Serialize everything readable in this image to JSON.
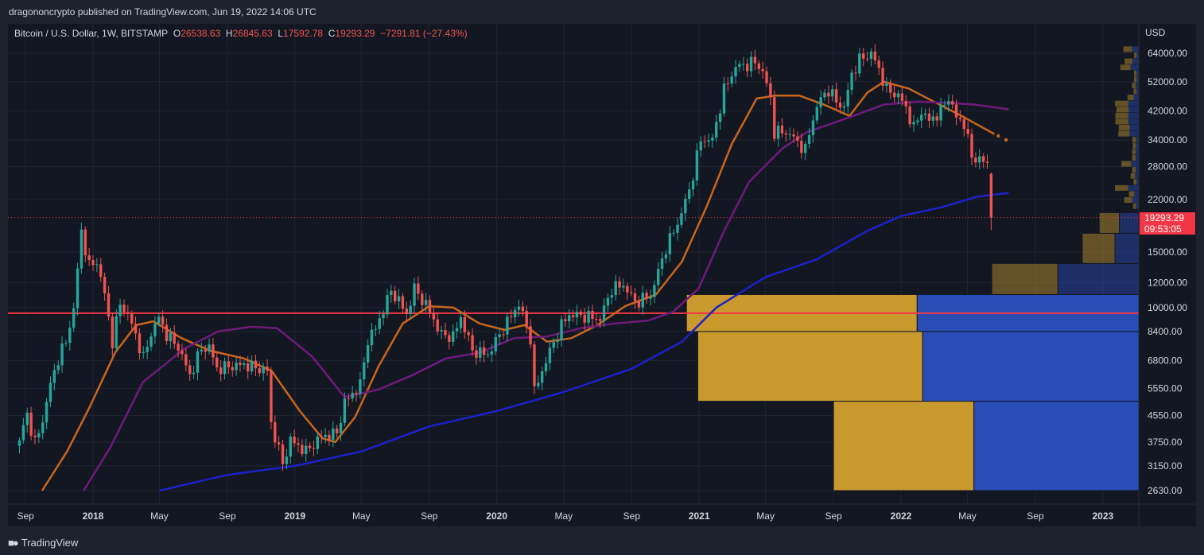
{
  "header": {
    "publisher": "dragononcrypto published on TradingView.com, Jun 19, 2022 14:06 UTC"
  },
  "legend": {
    "symbol": "Bitcoin / U.S. Dollar, 1W, BITSTAMP",
    "o_label": "O",
    "o": "26538.63",
    "h_label": "H",
    "h": "26845.63",
    "l_label": "L",
    "l": "17592.78",
    "c_label": "C",
    "c": "19293.29",
    "change": "−7291.81 (−27.43%)"
  },
  "price_tag": {
    "price": "19293.29",
    "countdown": "09:53:05"
  },
  "footer": {
    "brand": "TradingView",
    "logo_icon": "tradingview-logo-icon"
  },
  "colors": {
    "background": "#131722",
    "up": "#26a69a",
    "down": "#ef5350",
    "ma_orange": "#c8661b",
    "ma_purple": "#6f1a7b",
    "ma_blue": "#1c20c8",
    "hline": "#f23645",
    "vp_up": "#2a4db5",
    "vp_down": "#c89a2e"
  },
  "chart_data": {
    "type": "candlestick",
    "scale": "log",
    "currency": "USD",
    "y_ticks": [
      64000,
      52000,
      42000,
      34000,
      28000,
      22000,
      15000,
      12000,
      10000,
      8400,
      6800,
      5550,
      4550,
      3750,
      3150,
      2630
    ],
    "y_tick_labels": [
      "64000.00",
      "52000.00",
      "42000.00",
      "34000.00",
      "28000.00",
      "22000.00",
      "15000.00",
      "12000.00",
      "10000.00",
      "8400.00",
      "6800.00",
      "5550.00",
      "4550.00",
      "3750.00",
      "3150.00",
      "2630.00"
    ],
    "x_tick_labels": [
      {
        "date": "2017-09-01",
        "label": "Sep",
        "bold": false
      },
      {
        "date": "2018-01-01",
        "label": "2018",
        "bold": true
      },
      {
        "date": "2018-05-01",
        "label": "May",
        "bold": false
      },
      {
        "date": "2018-09-01",
        "label": "Sep",
        "bold": false
      },
      {
        "date": "2019-01-01",
        "label": "2019",
        "bold": true
      },
      {
        "date": "2019-05-01",
        "label": "May",
        "bold": false
      },
      {
        "date": "2019-09-01",
        "label": "Sep",
        "bold": false
      },
      {
        "date": "2020-01-01",
        "label": "2020",
        "bold": true
      },
      {
        "date": "2020-05-01",
        "label": "May",
        "bold": false
      },
      {
        "date": "2020-09-01",
        "label": "Sep",
        "bold": false
      },
      {
        "date": "2021-01-01",
        "label": "2021",
        "bold": true
      },
      {
        "date": "2021-05-01",
        "label": "May",
        "bold": false
      },
      {
        "date": "2021-09-01",
        "label": "Sep",
        "bold": false
      },
      {
        "date": "2022-01-01",
        "label": "2022",
        "bold": true
      },
      {
        "date": "2022-05-01",
        "label": "May",
        "bold": false
      },
      {
        "date": "2022-09-01",
        "label": "Sep",
        "bold": false
      },
      {
        "date": "2023-01-01",
        "label": "2023",
        "bold": true
      }
    ],
    "horizontal_line": 9600,
    "last_close": 19293.29,
    "price_anchors": [
      [
        "2017-08-21",
        3800
      ],
      [
        "2017-09-04",
        4600
      ],
      [
        "2017-09-18",
        3700
      ],
      [
        "2017-10-02",
        4400
      ],
      [
        "2017-10-16",
        5700
      ],
      [
        "2017-10-30",
        6900
      ],
      [
        "2017-11-13",
        7800
      ],
      [
        "2017-11-27",
        9900
      ],
      [
        "2017-12-11",
        17500
      ],
      [
        "2017-12-25",
        13500
      ],
      [
        "2018-01-08",
        14000
      ],
      [
        "2018-01-22",
        11000
      ],
      [
        "2018-02-05",
        7800
      ],
      [
        "2018-02-19",
        10300
      ],
      [
        "2018-03-05",
        9500
      ],
      [
        "2018-03-19",
        8200
      ],
      [
        "2018-04-02",
        6900
      ],
      [
        "2018-04-16",
        8300
      ],
      [
        "2018-04-30",
        9300
      ],
      [
        "2018-05-14",
        8200
      ],
      [
        "2018-06-04",
        7500
      ],
      [
        "2018-06-25",
        6100
      ],
      [
        "2018-07-16",
        7400
      ],
      [
        "2018-07-30",
        7500
      ],
      [
        "2018-08-13",
        6400
      ],
      [
        "2018-09-03",
        6500
      ],
      [
        "2018-10-01",
        6600
      ],
      [
        "2018-11-12",
        6300
      ],
      [
        "2018-11-19",
        4300
      ],
      [
        "2018-12-10",
        3200
      ],
      [
        "2018-12-24",
        3800
      ],
      [
        "2019-01-21",
        3500
      ],
      [
        "2019-02-18",
        3900
      ],
      [
        "2019-03-18",
        4000
      ],
      [
        "2019-04-01",
        5000
      ],
      [
        "2019-04-29",
        5700
      ],
      [
        "2019-05-13",
        7900
      ],
      [
        "2019-05-27",
        8600
      ],
      [
        "2019-06-24",
        11300
      ],
      [
        "2019-07-08",
        10500
      ],
      [
        "2019-07-22",
        9500
      ],
      [
        "2019-08-05",
        11500
      ],
      [
        "2019-08-26",
        10200
      ],
      [
        "2019-09-23",
        8200
      ],
      [
        "2019-10-14",
        8100
      ],
      [
        "2019-10-28",
        9300
      ],
      [
        "2019-11-18",
        7300
      ],
      [
        "2019-12-16",
        7100
      ],
      [
        "2020-01-13",
        8600
      ],
      [
        "2020-02-10",
        10300
      ],
      [
        "2020-03-02",
        8000
      ],
      [
        "2020-03-09",
        5400
      ],
      [
        "2020-03-30",
        6800
      ],
      [
        "2020-04-27",
        8800
      ],
      [
        "2020-05-11",
        9500
      ],
      [
        "2020-06-08",
        9400
      ],
      [
        "2020-07-06",
        9200
      ],
      [
        "2020-07-27",
        11500
      ],
      [
        "2020-08-17",
        11800
      ],
      [
        "2020-09-07",
        10400
      ],
      [
        "2020-10-05",
        10900
      ],
      [
        "2020-10-19",
        13000
      ],
      [
        "2020-11-02",
        15500
      ],
      [
        "2020-11-23",
        18500
      ],
      [
        "2020-12-14",
        23500
      ],
      [
        "2021-01-04",
        34000
      ],
      [
        "2021-01-25",
        34000
      ],
      [
        "2021-02-15",
        49000
      ],
      [
        "2021-03-08",
        58000
      ],
      [
        "2021-03-29",
        59000
      ],
      [
        "2021-04-12",
        60000
      ],
      [
        "2021-04-26",
        56000
      ],
      [
        "2021-05-10",
        46000
      ],
      [
        "2021-05-17",
        36000
      ],
      [
        "2021-06-07",
        36000
      ],
      [
        "2021-06-21",
        34500
      ],
      [
        "2021-07-12",
        31500
      ],
      [
        "2021-07-26",
        40000
      ],
      [
        "2021-08-09",
        46000
      ],
      [
        "2021-08-23",
        49000
      ],
      [
        "2021-09-06",
        45000
      ],
      [
        "2021-09-20",
        43000
      ],
      [
        "2021-10-04",
        55000
      ],
      [
        "2021-10-18",
        61000
      ],
      [
        "2021-11-08",
        64000
      ],
      [
        "2021-11-22",
        57000
      ],
      [
        "2021-12-06",
        49000
      ],
      [
        "2021-12-27",
        47000
      ],
      [
        "2022-01-10",
        43000
      ],
      [
        "2022-01-24",
        37000
      ],
      [
        "2022-02-07",
        42000
      ],
      [
        "2022-02-21",
        39000
      ],
      [
        "2022-03-14",
        42000
      ],
      [
        "2022-03-28",
        46500
      ],
      [
        "2022-04-11",
        40000
      ],
      [
        "2022-04-25",
        38500
      ],
      [
        "2022-05-09",
        30000
      ],
      [
        "2022-05-23",
        29500
      ],
      [
        "2022-06-06",
        28500
      ],
      [
        "2022-06-13",
        26538
      ]
    ],
    "last_candle": {
      "date": "2022-06-13",
      "open": 26538.63,
      "high": 26845.63,
      "low": 17592.78,
      "close": 19293.29
    },
    "moving_averages": [
      {
        "id": "ma-orange",
        "color": "#c8661b",
        "points": [
          [
            "2017-10-01",
            2630
          ],
          [
            "2017-11-15",
            3500
          ],
          [
            "2017-12-25",
            4800
          ],
          [
            "2018-02-10",
            7200
          ],
          [
            "2018-03-20",
            8800
          ],
          [
            "2018-04-20",
            9050
          ],
          [
            "2018-06-10",
            8000
          ],
          [
            "2018-08-01",
            7300
          ],
          [
            "2018-10-01",
            6900
          ],
          [
            "2018-11-20",
            6300
          ],
          [
            "2019-01-10",
            4700
          ],
          [
            "2019-02-20",
            3850
          ],
          [
            "2019-03-15",
            3750
          ],
          [
            "2019-04-20",
            4500
          ],
          [
            "2019-06-01",
            6500
          ],
          [
            "2019-07-15",
            8900
          ],
          [
            "2019-09-01",
            10100
          ],
          [
            "2019-10-15",
            10000
          ],
          [
            "2019-12-01",
            8900
          ],
          [
            "2020-01-15",
            8500
          ],
          [
            "2020-02-20",
            8800
          ],
          [
            "2020-04-01",
            7800
          ],
          [
            "2020-05-15",
            8000
          ],
          [
            "2020-07-01",
            8800
          ],
          [
            "2020-08-20",
            10100
          ],
          [
            "2020-10-15",
            11000
          ],
          [
            "2020-12-01",
            14000
          ],
          [
            "2021-01-15",
            21000
          ],
          [
            "2021-03-01",
            33000
          ],
          [
            "2021-04-15",
            46000
          ],
          [
            "2021-05-20",
            47000
          ],
          [
            "2021-07-01",
            47000
          ],
          [
            "2021-08-15",
            44000
          ],
          [
            "2021-09-30",
            40500
          ],
          [
            "2021-11-01",
            48000
          ],
          [
            "2021-12-01",
            52000
          ],
          [
            "2022-01-15",
            49500
          ],
          [
            "2022-03-01",
            45000
          ],
          [
            "2022-04-15",
            41000
          ],
          [
            "2022-06-19",
            35500
          ]
        ],
        "dotted_tail": [
          [
            "2022-06-26",
            35000
          ],
          [
            "2022-07-10",
            34000
          ]
        ]
      },
      {
        "id": "ma-purple",
        "color": "#6f1a7b",
        "points": [
          [
            "2017-12-15",
            2630
          ],
          [
            "2018-02-01",
            3600
          ],
          [
            "2018-04-01",
            5800
          ],
          [
            "2018-06-15",
            7400
          ],
          [
            "2018-08-15",
            8400
          ],
          [
            "2018-10-15",
            8700
          ],
          [
            "2018-11-30",
            8600
          ],
          [
            "2019-02-01",
            7000
          ],
          [
            "2019-04-01",
            5200
          ],
          [
            "2019-06-01",
            5500
          ],
          [
            "2019-08-01",
            6100
          ],
          [
            "2019-10-01",
            6900
          ],
          [
            "2019-12-01",
            7200
          ],
          [
            "2020-02-01",
            8000
          ],
          [
            "2020-04-01",
            8100
          ],
          [
            "2020-06-01",
            8600
          ],
          [
            "2020-08-01",
            8900
          ],
          [
            "2020-10-01",
            9100
          ],
          [
            "2020-11-15",
            9700
          ],
          [
            "2020-12-31",
            11500
          ],
          [
            "2021-02-15",
            17500
          ],
          [
            "2021-04-01",
            25000
          ],
          [
            "2021-06-01",
            32000
          ],
          [
            "2021-07-15",
            36000
          ],
          [
            "2021-09-01",
            38500
          ],
          [
            "2021-10-15",
            41000
          ],
          [
            "2021-12-01",
            44000
          ],
          [
            "2022-02-01",
            45000
          ],
          [
            "2022-04-01",
            44500
          ],
          [
            "2022-05-15",
            44000
          ],
          [
            "2022-07-15",
            42500
          ]
        ]
      },
      {
        "id": "ma-blue",
        "color": "#1c20c8",
        "points": [
          [
            "2018-05-01",
            2630
          ],
          [
            "2018-09-01",
            2950
          ],
          [
            "2019-01-01",
            3150
          ],
          [
            "2019-05-01",
            3500
          ],
          [
            "2019-09-01",
            4200
          ],
          [
            "2020-01-01",
            4700
          ],
          [
            "2020-05-01",
            5400
          ],
          [
            "2020-09-01",
            6400
          ],
          [
            "2020-12-01",
            7800
          ],
          [
            "2021-02-01",
            10000
          ],
          [
            "2021-05-01",
            12500
          ],
          [
            "2021-08-01",
            14200
          ],
          [
            "2021-11-01",
            17500
          ],
          [
            "2022-01-01",
            19500
          ],
          [
            "2022-03-15",
            20800
          ],
          [
            "2022-05-20",
            22500
          ],
          [
            "2022-07-15",
            23100
          ]
        ]
      }
    ],
    "volume_profile": [
      {
        "low": 2630,
        "high": 5050,
        "up_share": 0.54,
        "total_share": 0.27
      },
      {
        "low": 5050,
        "high": 8400,
        "up_share": 0.49,
        "total_share": 0.39
      },
      {
        "low": 8400,
        "high": 11000,
        "up_share": 0.49,
        "total_share": 0.4
      },
      {
        "low": 11000,
        "high": 13800,
        "up_share": 0.55,
        "total_share": 0.13
      },
      {
        "low": 13800,
        "high": 17200,
        "up_share": 0.42,
        "total_share": 0.05
      },
      {
        "low": 17200,
        "high": 20000,
        "up_share": 0.49,
        "total_share": 0.035
      }
    ]
  }
}
